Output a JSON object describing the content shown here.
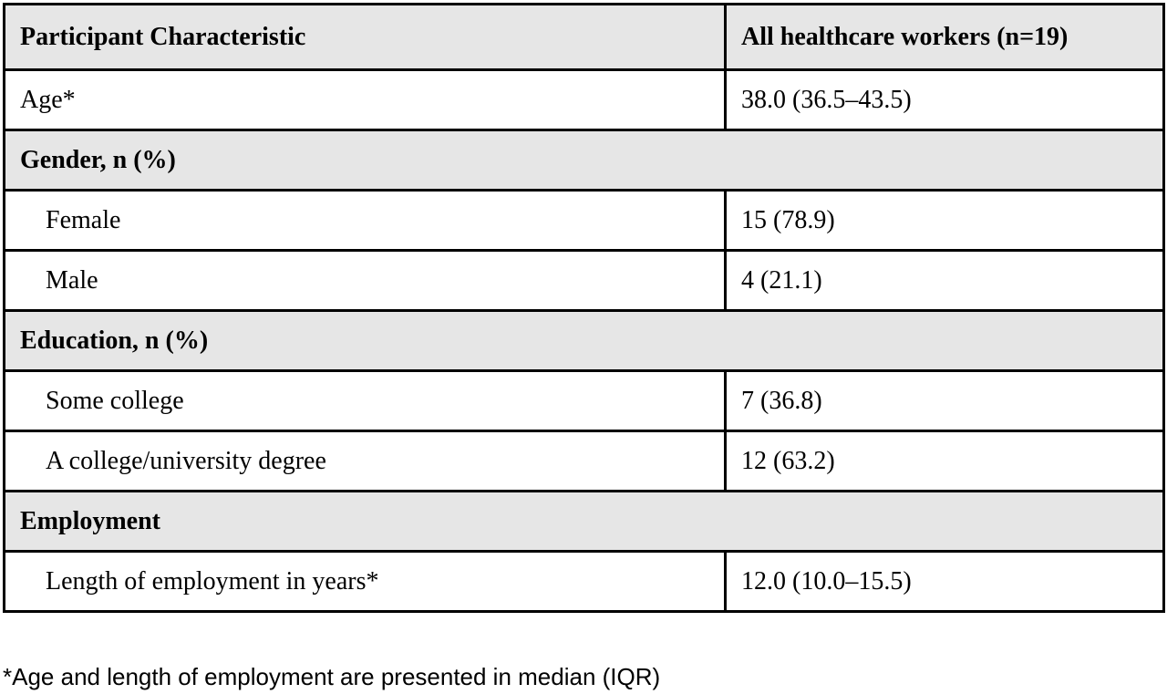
{
  "table": {
    "headers": [
      "Participant Characteristic",
      "All healthcare workers (n=19)"
    ],
    "rows": [
      {
        "label": "Age*",
        "value": "38.0 (36.5–43.5)"
      },
      {
        "section": "Gender, n (%)"
      },
      {
        "label": "Female",
        "value": "15 (78.9)"
      },
      {
        "label": "Male",
        "value": "4 (21.1)"
      },
      {
        "section": "Education, n (%)"
      },
      {
        "label": "Some college",
        "value": "7 (36.8)"
      },
      {
        "label": "A college/university degree",
        "value": "12 (63.2)"
      },
      {
        "section": "Employment"
      },
      {
        "label": "Length of employment in years*",
        "value": "12.0 (10.0–15.5)"
      }
    ]
  },
  "footnote": "*Age and length of employment are presented in median (IQR)",
  "colors": {
    "header_background": "#e6e6e6",
    "section_background": "#e6e6e6",
    "border": "#000000"
  }
}
